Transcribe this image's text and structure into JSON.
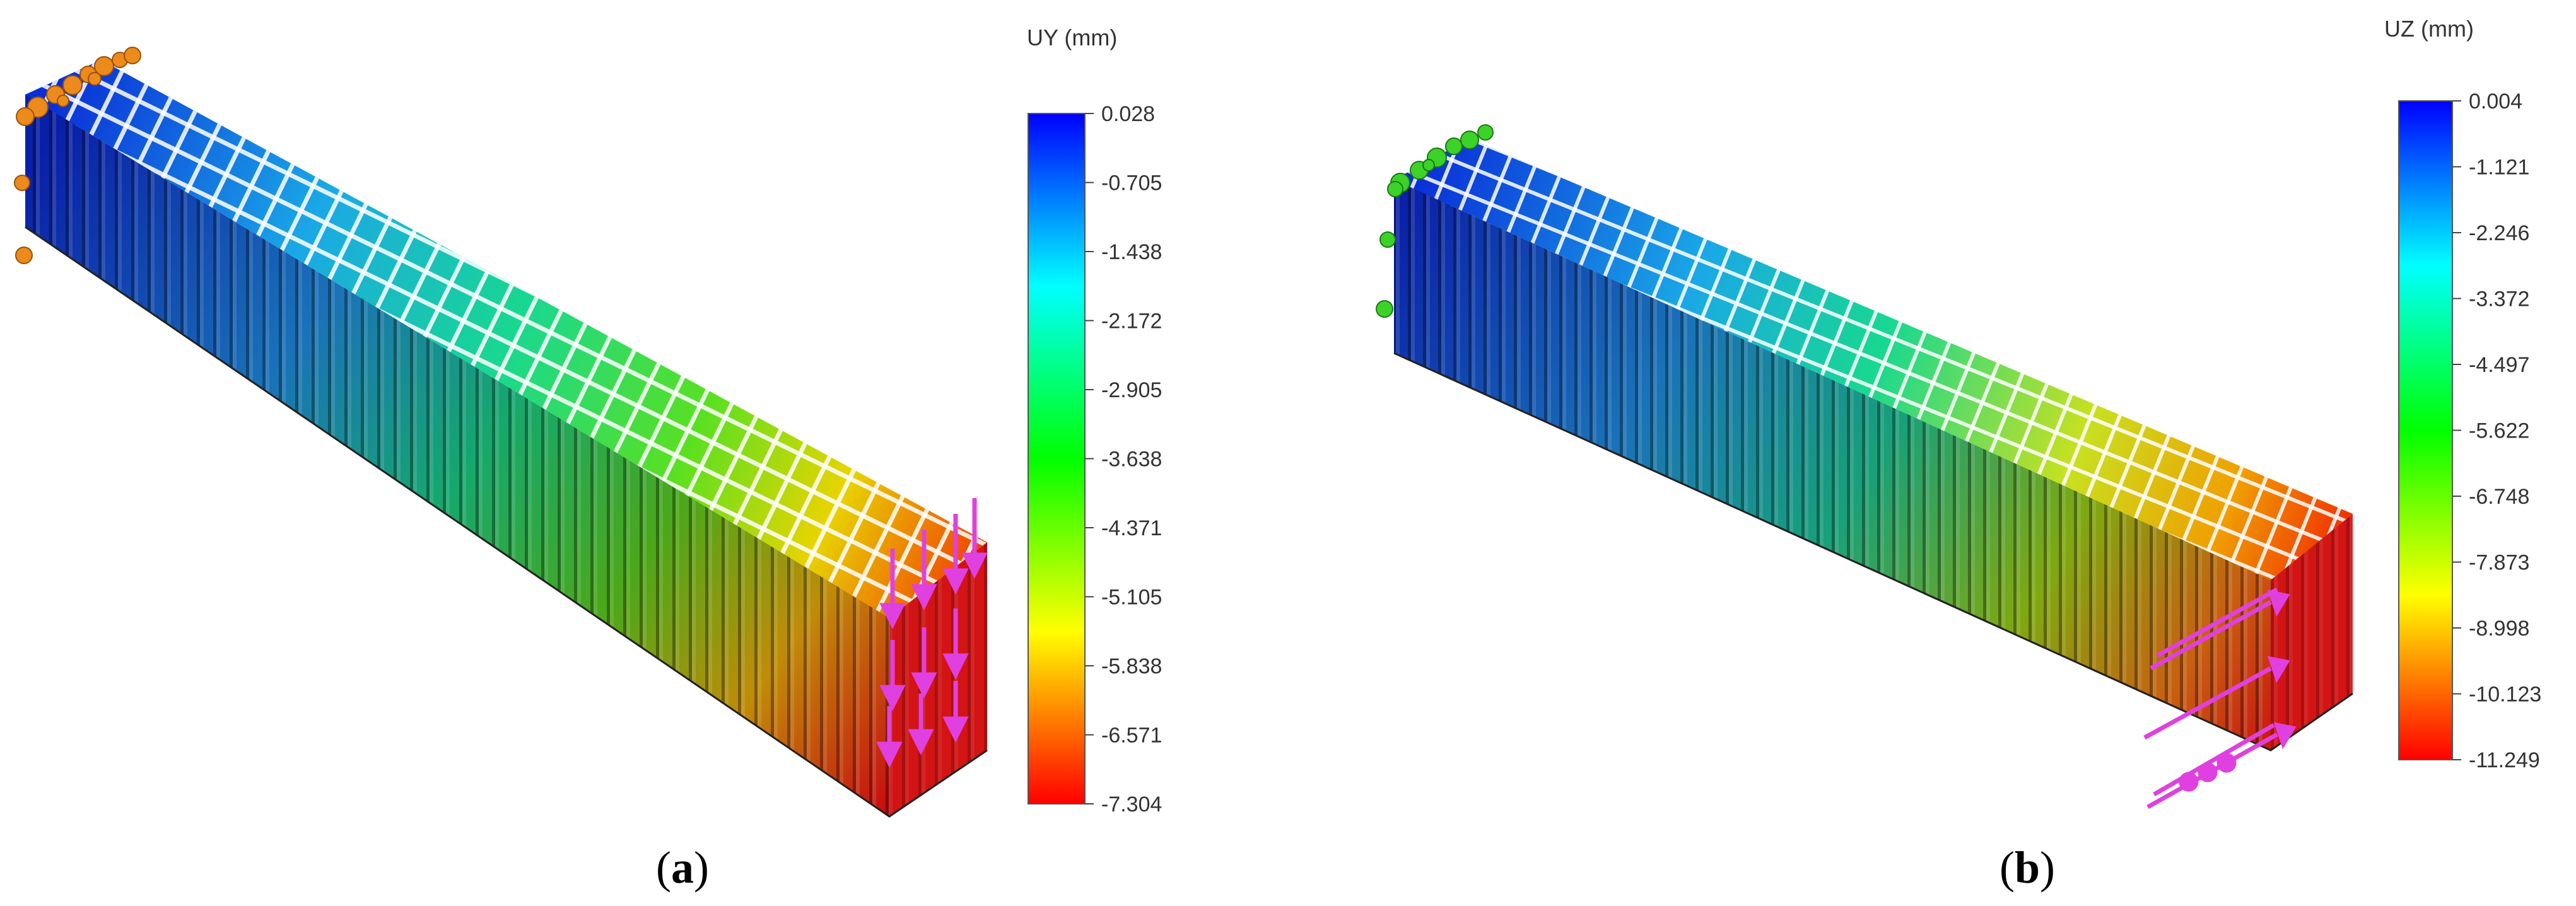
{
  "panels": [
    {
      "label": "a",
      "colorbar": {
        "title": "UY (mm)",
        "ticks": [
          "0.028",
          "-0.705",
          "-1.438",
          "-2.172",
          "-2.905",
          "-3.638",
          "-4.371",
          "-5.105",
          "-5.838",
          "-6.571",
          "-7.304"
        ]
      },
      "fixture_color": "#ec8a1c",
      "load_color": "#e040e0",
      "load_direction": "vertical"
    },
    {
      "label": "b",
      "colorbar": {
        "title": "UZ (mm)",
        "ticks": [
          "0.004",
          "-1.121",
          "-2.246",
          "-3.372",
          "-4.497",
          "-5.622",
          "-6.748",
          "-7.873",
          "-8.998",
          "-10.123",
          "-11.249"
        ]
      },
      "fixture_color": "#3cd22a",
      "load_color": "#e040e0",
      "load_direction": "horizontal"
    }
  ]
}
